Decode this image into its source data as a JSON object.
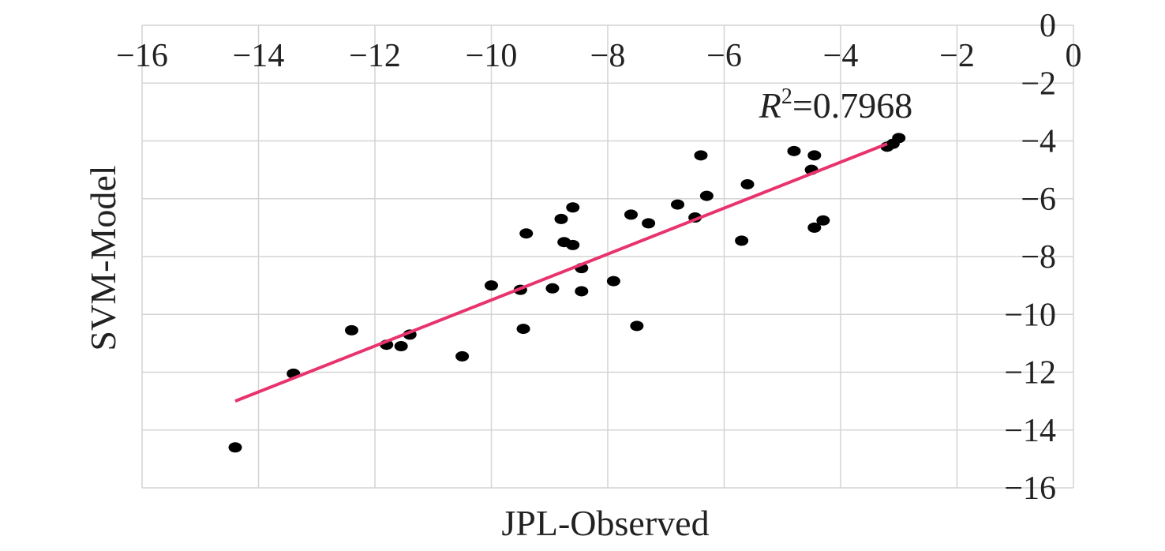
{
  "chart_data": {
    "type": "scatter",
    "title": "",
    "xlabel": "JPL-Observed",
    "ylabel": "SVM-Model",
    "xlim": [
      -16,
      0
    ],
    "ylim": [
      -16,
      0
    ],
    "x_ticks": [
      "−16",
      "−14",
      "−12",
      "−10",
      "−8",
      "−6",
      "−4",
      "−2",
      "0"
    ],
    "y_ticks": [
      "0",
      "−2",
      "−4",
      "−6",
      "−8",
      "−10",
      "−12",
      "−14",
      "−16"
    ],
    "x_tick_values": [
      -16,
      -14,
      -12,
      -10,
      -8,
      -6,
      -4,
      -2,
      0
    ],
    "y_tick_values": [
      0,
      -2,
      -4,
      -6,
      -8,
      -10,
      -12,
      -14,
      -16
    ],
    "grid": true,
    "point_color": "#000000",
    "trend_color": "#e8336d",
    "annotation": {
      "r_symbol": "R",
      "superscript": "2",
      "value_text": "=0.7968",
      "x": -5.4,
      "y": -3.2
    },
    "trendline": {
      "x": [
        -14.4,
        -3.2
      ],
      "y": [
        -13.0,
        -4.1
      ]
    },
    "points": [
      [
        -14.4,
        -14.6
      ],
      [
        -13.4,
        -12.05
      ],
      [
        -12.4,
        -10.55
      ],
      [
        -11.8,
        -11.05
      ],
      [
        -11.55,
        -11.1
      ],
      [
        -11.4,
        -10.7
      ],
      [
        -10.5,
        -11.45
      ],
      [
        -10.0,
        -9.0
      ],
      [
        -9.45,
        -10.5
      ],
      [
        -9.4,
        -7.2
      ],
      [
        -9.5,
        -9.15
      ],
      [
        -8.95,
        -9.1
      ],
      [
        -8.8,
        -6.7
      ],
      [
        -8.75,
        -7.5
      ],
      [
        -8.6,
        -6.3
      ],
      [
        -8.6,
        -7.6
      ],
      [
        -8.45,
        -8.4
      ],
      [
        -8.45,
        -9.2
      ],
      [
        -7.9,
        -8.85
      ],
      [
        -7.5,
        -10.4
      ],
      [
        -7.6,
        -6.55
      ],
      [
        -7.3,
        -6.85
      ],
      [
        -6.8,
        -6.2
      ],
      [
        -6.5,
        -6.65
      ],
      [
        -6.4,
        -4.5
      ],
      [
        -6.3,
        -5.9
      ],
      [
        -5.6,
        -5.5
      ],
      [
        -5.7,
        -7.45
      ],
      [
        -4.8,
        -4.35
      ],
      [
        -4.5,
        -5.0
      ],
      [
        -4.45,
        -4.5
      ],
      [
        -4.45,
        -7.0
      ],
      [
        -4.3,
        -6.75
      ],
      [
        -3.2,
        -4.2
      ],
      [
        -3.1,
        -4.1
      ],
      [
        -3.0,
        -3.9
      ]
    ]
  }
}
